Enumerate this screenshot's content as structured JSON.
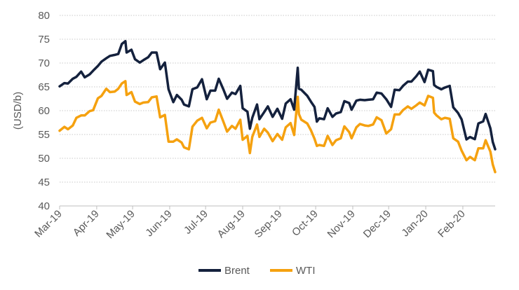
{
  "chart_data": {
    "type": "line",
    "title": "",
    "xlabel": "",
    "ylabel": "(USD/b)",
    "ylim": [
      40,
      80
    ],
    "yticks": [
      40,
      45,
      50,
      55,
      60,
      65,
      70,
      75,
      80
    ],
    "grid": "horizontal dotted",
    "legend_position": "bottom",
    "x_tick_labels": [
      "Mar-19",
      "Apr-19",
      "May-19",
      "Jun-19",
      "Jul-19",
      "Aug-19",
      "Sep-19",
      "Oct-19",
      "Nov-19",
      "Dec-19",
      "Jan-20",
      "Feb-20"
    ],
    "x_start": "2019-03-01",
    "series": [
      {
        "name": "Brent",
        "color": "#14213d",
        "points": [
          [
            "2019-03-01",
            65.1
          ],
          [
            "2019-03-05",
            65.8
          ],
          [
            "2019-03-08",
            65.7
          ],
          [
            "2019-03-12",
            66.7
          ],
          [
            "2019-03-15",
            67.1
          ],
          [
            "2019-03-19",
            68.2
          ],
          [
            "2019-03-22",
            67.0
          ],
          [
            "2019-03-26",
            67.6
          ],
          [
            "2019-03-29",
            68.4
          ],
          [
            "2019-04-02",
            69.4
          ],
          [
            "2019-04-05",
            70.3
          ],
          [
            "2019-04-09",
            71.0
          ],
          [
            "2019-04-12",
            71.5
          ],
          [
            "2019-04-16",
            71.7
          ],
          [
            "2019-04-19",
            71.9
          ],
          [
            "2019-04-22",
            74.0
          ],
          [
            "2019-04-25",
            74.6
          ],
          [
            "2019-04-26",
            72.2
          ],
          [
            "2019-04-30",
            72.8
          ],
          [
            "2019-05-03",
            70.8
          ],
          [
            "2019-05-07",
            70.1
          ],
          [
            "2019-05-10",
            70.6
          ],
          [
            "2019-05-14",
            71.2
          ],
          [
            "2019-05-17",
            72.2
          ],
          [
            "2019-05-21",
            72.2
          ],
          [
            "2019-05-24",
            68.7
          ],
          [
            "2019-05-28",
            70.1
          ],
          [
            "2019-05-31",
            64.5
          ],
          [
            "2019-06-04",
            61.8
          ],
          [
            "2019-06-07",
            63.3
          ],
          [
            "2019-06-11",
            62.3
          ],
          [
            "2019-06-13",
            61.3
          ],
          [
            "2019-06-17",
            60.9
          ],
          [
            "2019-06-20",
            64.5
          ],
          [
            "2019-06-24",
            64.9
          ],
          [
            "2019-06-28",
            66.6
          ],
          [
            "2019-07-02",
            62.4
          ],
          [
            "2019-07-05",
            64.2
          ],
          [
            "2019-07-09",
            64.2
          ],
          [
            "2019-07-12",
            66.7
          ],
          [
            "2019-07-16",
            64.4
          ],
          [
            "2019-07-19",
            62.5
          ],
          [
            "2019-07-23",
            63.8
          ],
          [
            "2019-07-26",
            63.5
          ],
          [
            "2019-07-30",
            65.2
          ],
          [
            "2019-08-01",
            60.5
          ],
          [
            "2019-08-05",
            59.8
          ],
          [
            "2019-08-07",
            56.2
          ],
          [
            "2019-08-09",
            58.5
          ],
          [
            "2019-08-13",
            61.3
          ],
          [
            "2019-08-15",
            58.2
          ],
          [
            "2019-08-19",
            59.7
          ],
          [
            "2019-08-22",
            60.9
          ],
          [
            "2019-08-26",
            58.7
          ],
          [
            "2019-08-30",
            60.4
          ],
          [
            "2019-09-03",
            58.3
          ],
          [
            "2019-09-06",
            61.5
          ],
          [
            "2019-09-10",
            62.4
          ],
          [
            "2019-09-13",
            60.2
          ],
          [
            "2019-09-16",
            69.0
          ],
          [
            "2019-09-17",
            64.6
          ],
          [
            "2019-09-19",
            64.4
          ],
          [
            "2019-09-24",
            63.1
          ],
          [
            "2019-09-27",
            61.9
          ],
          [
            "2019-09-30",
            60.8
          ],
          [
            "2019-10-02",
            57.7
          ],
          [
            "2019-10-04",
            58.4
          ],
          [
            "2019-10-08",
            58.2
          ],
          [
            "2019-10-11",
            60.5
          ],
          [
            "2019-10-15",
            58.7
          ],
          [
            "2019-10-18",
            59.4
          ],
          [
            "2019-10-22",
            59.7
          ],
          [
            "2019-10-25",
            62.0
          ],
          [
            "2019-10-29",
            61.6
          ],
          [
            "2019-10-31",
            60.2
          ],
          [
            "2019-11-04",
            62.1
          ],
          [
            "2019-11-07",
            62.3
          ],
          [
            "2019-11-11",
            62.2
          ],
          [
            "2019-11-14",
            62.3
          ],
          [
            "2019-11-18",
            62.4
          ],
          [
            "2019-11-21",
            63.8
          ],
          [
            "2019-11-25",
            63.6
          ],
          [
            "2019-11-29",
            62.4
          ],
          [
            "2019-12-03",
            60.8
          ],
          [
            "2019-12-06",
            64.4
          ],
          [
            "2019-12-10",
            64.3
          ],
          [
            "2019-12-13",
            65.2
          ],
          [
            "2019-12-17",
            66.1
          ],
          [
            "2019-12-20",
            66.1
          ],
          [
            "2019-12-24",
            67.2
          ],
          [
            "2019-12-27",
            68.2
          ],
          [
            "2019-12-31",
            66.0
          ],
          [
            "2020-01-03",
            68.6
          ],
          [
            "2020-01-07",
            68.3
          ],
          [
            "2020-01-08",
            65.4
          ],
          [
            "2020-01-10",
            64.98
          ],
          [
            "2020-01-14",
            64.49
          ],
          [
            "2020-01-17",
            64.85
          ],
          [
            "2020-01-21",
            65.2
          ],
          [
            "2020-01-24",
            60.69
          ],
          [
            "2020-01-28",
            59.51
          ],
          [
            "2020-01-31",
            58.16
          ],
          [
            "2020-02-04",
            53.96
          ],
          [
            "2020-02-07",
            54.47
          ],
          [
            "2020-02-11",
            54.01
          ],
          [
            "2020-02-14",
            57.32
          ],
          [
            "2020-02-18",
            57.75
          ],
          [
            "2020-02-20",
            59.31
          ],
          [
            "2020-02-24",
            56.3
          ],
          [
            "2020-02-26",
            53.43
          ],
          [
            "2020-02-28",
            51.9
          ]
        ]
      },
      {
        "name": "WTI",
        "color": "#f5a10f",
        "points": [
          [
            "2019-03-01",
            55.8
          ],
          [
            "2019-03-05",
            56.6
          ],
          [
            "2019-03-08",
            56.1
          ],
          [
            "2019-03-12",
            56.9
          ],
          [
            "2019-03-15",
            58.5
          ],
          [
            "2019-03-19",
            59.0
          ],
          [
            "2019-03-22",
            59.0
          ],
          [
            "2019-03-26",
            59.9
          ],
          [
            "2019-03-29",
            60.1
          ],
          [
            "2019-04-02",
            62.6
          ],
          [
            "2019-04-05",
            63.1
          ],
          [
            "2019-04-09",
            64.6
          ],
          [
            "2019-04-12",
            63.9
          ],
          [
            "2019-04-16",
            64.0
          ],
          [
            "2019-04-19",
            64.6
          ],
          [
            "2019-04-22",
            65.7
          ],
          [
            "2019-04-25",
            66.2
          ],
          [
            "2019-04-26",
            63.3
          ],
          [
            "2019-04-30",
            63.9
          ],
          [
            "2019-05-03",
            61.9
          ],
          [
            "2019-05-07",
            61.4
          ],
          [
            "2019-05-10",
            61.7
          ],
          [
            "2019-05-14",
            61.8
          ],
          [
            "2019-05-17",
            62.8
          ],
          [
            "2019-05-21",
            62.99
          ],
          [
            "2019-05-24",
            58.6
          ],
          [
            "2019-05-28",
            59.1
          ],
          [
            "2019-05-31",
            53.5
          ],
          [
            "2019-06-04",
            53.5
          ],
          [
            "2019-06-07",
            53.99
          ],
          [
            "2019-06-11",
            53.3
          ],
          [
            "2019-06-13",
            52.3
          ],
          [
            "2019-06-17",
            51.9
          ],
          [
            "2019-06-20",
            56.65
          ],
          [
            "2019-06-24",
            57.9
          ],
          [
            "2019-06-28",
            58.5
          ],
          [
            "2019-07-02",
            56.3
          ],
          [
            "2019-07-05",
            57.5
          ],
          [
            "2019-07-09",
            57.8
          ],
          [
            "2019-07-12",
            60.2
          ],
          [
            "2019-07-16",
            57.6
          ],
          [
            "2019-07-19",
            55.6
          ],
          [
            "2019-07-23",
            56.8
          ],
          [
            "2019-07-26",
            56.2
          ],
          [
            "2019-07-30",
            58.1
          ],
          [
            "2019-08-01",
            53.9
          ],
          [
            "2019-08-05",
            54.7
          ],
          [
            "2019-08-07",
            51.1
          ],
          [
            "2019-08-09",
            54.5
          ],
          [
            "2019-08-13",
            57.1
          ],
          [
            "2019-08-15",
            54.5
          ],
          [
            "2019-08-19",
            56.2
          ],
          [
            "2019-08-22",
            55.4
          ],
          [
            "2019-08-26",
            53.6
          ],
          [
            "2019-08-30",
            55.1
          ],
          [
            "2019-09-03",
            53.9
          ],
          [
            "2019-09-06",
            56.5
          ],
          [
            "2019-09-10",
            57.4
          ],
          [
            "2019-09-13",
            54.9
          ],
          [
            "2019-09-16",
            62.9
          ],
          [
            "2019-09-17",
            59.3
          ],
          [
            "2019-09-19",
            58.1
          ],
          [
            "2019-09-24",
            57.3
          ],
          [
            "2019-09-27",
            55.9
          ],
          [
            "2019-09-30",
            54.1
          ],
          [
            "2019-10-02",
            52.6
          ],
          [
            "2019-10-04",
            52.8
          ],
          [
            "2019-10-08",
            52.6
          ],
          [
            "2019-10-11",
            54.7
          ],
          [
            "2019-10-15",
            52.8
          ],
          [
            "2019-10-18",
            53.8
          ],
          [
            "2019-10-22",
            54.2
          ],
          [
            "2019-10-25",
            56.7
          ],
          [
            "2019-10-29",
            55.5
          ],
          [
            "2019-10-31",
            54.2
          ],
          [
            "2019-11-04",
            56.5
          ],
          [
            "2019-11-07",
            57.2
          ],
          [
            "2019-11-11",
            56.9
          ],
          [
            "2019-11-14",
            56.8
          ],
          [
            "2019-11-18",
            57.1
          ],
          [
            "2019-11-21",
            58.6
          ],
          [
            "2019-11-25",
            58.0
          ],
          [
            "2019-11-29",
            55.2
          ],
          [
            "2019-12-03",
            56.1
          ],
          [
            "2019-12-06",
            59.2
          ],
          [
            "2019-12-10",
            59.2
          ],
          [
            "2019-12-13",
            60.1
          ],
          [
            "2019-12-17",
            60.9
          ],
          [
            "2019-12-20",
            60.4
          ],
          [
            "2019-12-24",
            61.1
          ],
          [
            "2019-12-27",
            61.7
          ],
          [
            "2019-12-31",
            61.1
          ],
          [
            "2020-01-03",
            63.1
          ],
          [
            "2020-01-07",
            62.7
          ],
          [
            "2020-01-08",
            59.6
          ],
          [
            "2020-01-10",
            59.0
          ],
          [
            "2020-01-14",
            58.2
          ],
          [
            "2020-01-17",
            58.5
          ],
          [
            "2020-01-21",
            58.3
          ],
          [
            "2020-01-24",
            54.2
          ],
          [
            "2020-01-28",
            53.5
          ],
          [
            "2020-01-31",
            51.6
          ],
          [
            "2020-02-04",
            49.6
          ],
          [
            "2020-02-07",
            50.3
          ],
          [
            "2020-02-11",
            49.6
          ],
          [
            "2020-02-14",
            52.1
          ],
          [
            "2020-02-18",
            52.1
          ],
          [
            "2020-02-20",
            53.8
          ],
          [
            "2020-02-24",
            51.4
          ],
          [
            "2020-02-26",
            48.7
          ],
          [
            "2020-02-28",
            47.1
          ]
        ]
      }
    ]
  }
}
